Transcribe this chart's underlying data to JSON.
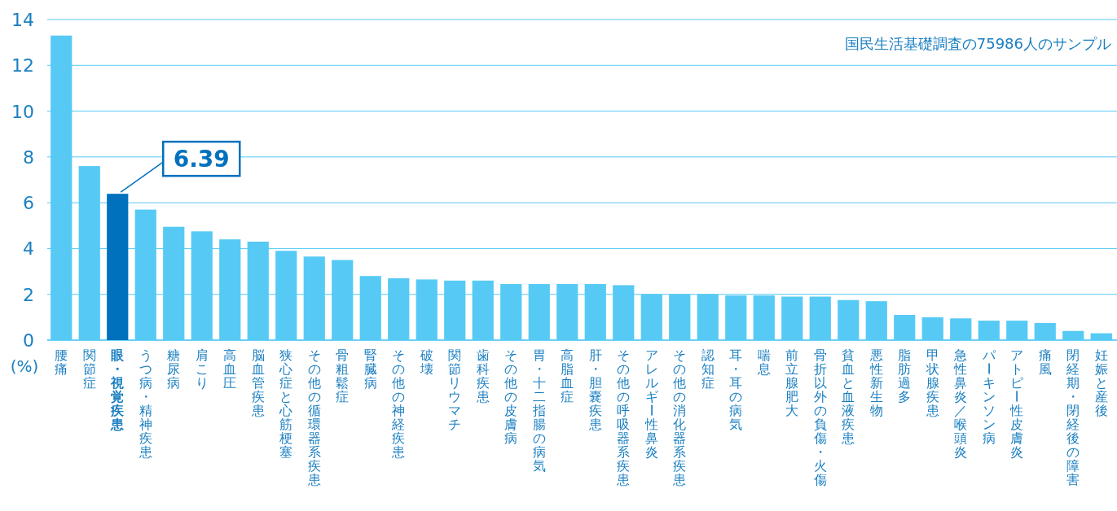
{
  "chart_data": {
    "type": "bar",
    "ylabel": "(%)",
    "categories": [
      "腰痛",
      "関節症",
      "眼・視覚疾患",
      "うつ病・精神疾患",
      "糖尿病",
      "肩こり",
      "高血圧",
      "脳血管疾患",
      "狭心症と心筋梗塞",
      "その他の循環器系疾患",
      "骨粗鬆症",
      "腎臓病",
      "その他の神経疾患",
      "破壊",
      "関節リウマチ",
      "歯科疾患",
      "その他の皮膚病",
      "胃・十二指腸の病気",
      "高脂血症",
      "肝・胆嚢疾患",
      "その他の呼吸器系疾患",
      "アレルギー性鼻炎",
      "その他の消化器系疾患",
      "認知症",
      "耳・耳の病気",
      "喘息",
      "前立腺肥大",
      "骨折以外の負傷・火傷",
      "貧血と血液疾患",
      "悪性新生物",
      "脂肪過多",
      "甲状腺疾患",
      "急性鼻炎／喉頭炎",
      "パーキンソン病",
      "アトピー性皮膚炎",
      "痛風",
      "閉経期・閉経後の障害",
      "妊娠と産後"
    ],
    "values": [
      13.3,
      7.6,
      6.39,
      5.7,
      4.95,
      4.75,
      4.4,
      4.3,
      3.9,
      3.65,
      3.5,
      2.8,
      2.7,
      2.65,
      2.6,
      2.6,
      2.45,
      2.45,
      2.45,
      2.45,
      2.4,
      2.0,
      2.0,
      2.0,
      1.95,
      1.95,
      1.9,
      1.9,
      1.75,
      1.7,
      1.1,
      1.0,
      0.95,
      0.85,
      0.85,
      0.75,
      0.4,
      0.3
    ],
    "colors": [
      "#56caf5",
      "#56caf5",
      "#0071bc",
      "#56caf5",
      "#56caf5",
      "#56caf5",
      "#56caf5",
      "#56caf5",
      "#56caf5",
      "#56caf5",
      "#56caf5",
      "#56caf5",
      "#56caf5",
      "#56caf5",
      "#56caf5",
      "#56caf5",
      "#56caf5",
      "#56caf5",
      "#56caf5",
      "#56caf5",
      "#56caf5",
      "#56caf5",
      "#56caf5",
      "#56caf5",
      "#56caf5",
      "#56caf5",
      "#56caf5",
      "#56caf5",
      "#56caf5",
      "#56caf5",
      "#56caf5",
      "#56caf5",
      "#56caf5",
      "#56caf5",
      "#56caf5",
      "#56caf5",
      "#56caf5",
      "#56caf5"
    ],
    "ylim": [
      0,
      14
    ],
    "yticks": [
      0,
      2,
      4,
      6,
      8,
      10,
      12,
      14
    ],
    "grid": "y",
    "annotations": [
      {
        "text": "6.39",
        "x": "眼・視覚疾患",
        "y": 6.39
      },
      "国民生活基礎調査の75986人のサンプル"
    ]
  }
}
